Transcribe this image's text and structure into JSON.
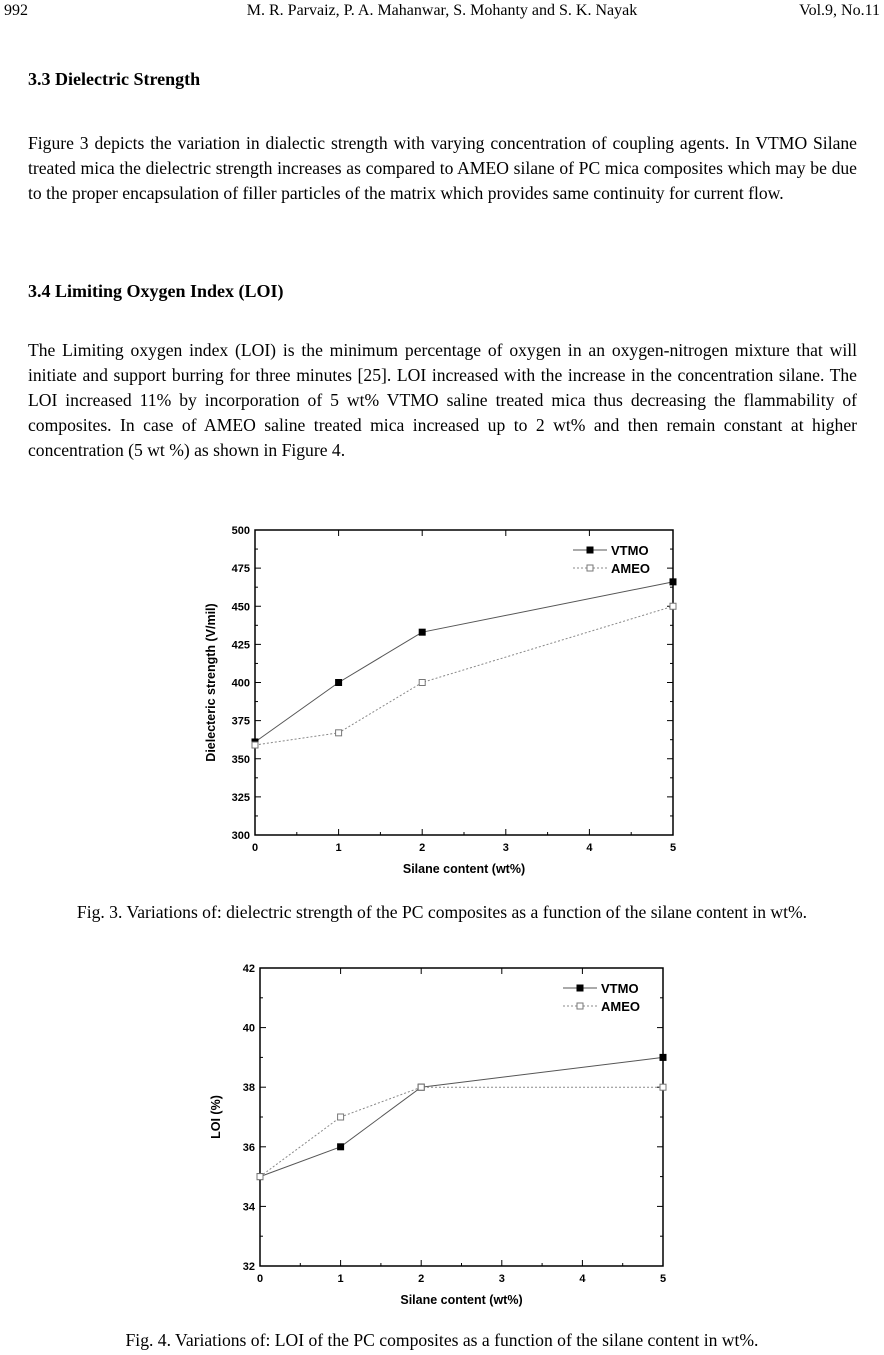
{
  "header": {
    "page_number": "992",
    "authors": "M. R. Parvaiz, P. A. Mahanwar, S. Mohanty and S. K. Nayak",
    "volume": "Vol.9, No.11"
  },
  "sections": [
    {
      "heading": "3.3 Dielectric Strength",
      "paragraph": "Figure 3 depicts the variation in dialectic strength with varying concentration of coupling agents. In VTMO Silane treated mica the dielectric strength increases as compared to AMEO silane of PC mica composites which may be due to the proper encapsulation of filler particles of the matrix which provides same continuity for current flow."
    },
    {
      "heading": "3.4 Limiting Oxygen Index (LOI)",
      "paragraph": "The Limiting oxygen index (LOI) is the minimum percentage of oxygen in an oxygen-nitrogen mixture that will initiate and support burring for three minutes [25]. LOI increased with the increase in the concentration silane. The LOI increased 11% by incorporation of 5 wt% VTMO saline treated mica thus decreasing the flammability of composites. In case of AMEO saline treated mica increased up to 2 wt% and then remain constant at higher concentration (5 wt %) as shown in Figure 4."
    }
  ],
  "captions": {
    "fig3": "Fig. 3. Variations of: dielectric strength of the PC composites as a function of the silane content in wt%.",
    "fig4": "Fig. 4. Variations of: LOI of the PC composites as a function of the silane content in wt%."
  },
  "chart_data": [
    {
      "type": "line",
      "xlabel": "Silane content (wt%)",
      "ylabel": "Dielecteric strength (V/mil)",
      "xlim": [
        0,
        5
      ],
      "ylim": [
        300,
        500
      ],
      "xticks": [
        0,
        1,
        2,
        3,
        4,
        5
      ],
      "yticks": [
        300,
        325,
        350,
        375,
        400,
        425,
        450,
        475,
        500
      ],
      "legend_placement": "top-right",
      "grid": false,
      "x": [
        0,
        1,
        2,
        5
      ],
      "series": [
        {
          "name": "VTMO",
          "values": [
            361,
            400,
            433,
            466
          ],
          "marker": "filled-square",
          "line": "solid",
          "color": "#000000"
        },
        {
          "name": "AMEO",
          "values": [
            359,
            367,
            400,
            450
          ],
          "marker": "open-square",
          "line": "dotted",
          "color": "#777777"
        }
      ]
    },
    {
      "type": "line",
      "xlabel": "Silane content (wt%)",
      "ylabel": "LOI (%)",
      "xlim": [
        0,
        5
      ],
      "ylim": [
        32,
        42
      ],
      "xticks": [
        0,
        1,
        2,
        3,
        4,
        5
      ],
      "yticks": [
        32,
        34,
        36,
        38,
        40,
        42
      ],
      "legend_placement": "top-right",
      "grid": false,
      "x": [
        0,
        1,
        2,
        5
      ],
      "series": [
        {
          "name": "VTMO",
          "values": [
            35,
            36,
            38,
            39
          ],
          "marker": "filled-square",
          "line": "solid",
          "color": "#000000"
        },
        {
          "name": "AMEO",
          "values": [
            35,
            37,
            38,
            38
          ],
          "marker": "open-square",
          "line": "dotted",
          "color": "#777777"
        }
      ]
    }
  ]
}
